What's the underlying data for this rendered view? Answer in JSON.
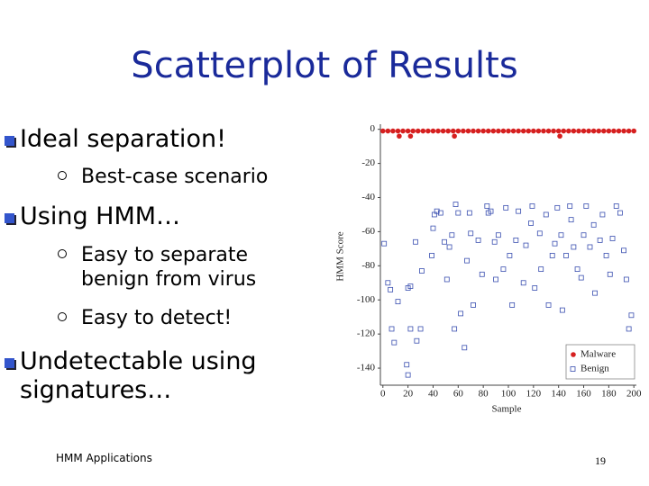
{
  "slide": {
    "title": "Scatterplot of Results",
    "bullets": [
      {
        "text": "Ideal separation!",
        "sub": [
          "Best-case scenario"
        ]
      },
      {
        "text": "Using HMM…",
        "sub": [
          "Easy to separate benign from virus",
          "Easy to detect!"
        ]
      },
      {
        "text": "Undetectable using signatures…"
      }
    ],
    "footer": "HMM Applications",
    "page_number": "19"
  },
  "chart_data": {
    "type": "scatter",
    "xlabel": "Sample",
    "ylabel": "HMM Score",
    "xlim": [
      -2,
      202
    ],
    "ylim": [
      3,
      -150
    ],
    "xticks": [
      0,
      20,
      40,
      60,
      80,
      100,
      120,
      140,
      160,
      180,
      200
    ],
    "yticks": [
      0,
      -20,
      -40,
      -60,
      -80,
      -100,
      -120,
      -140
    ],
    "legend": "lower right",
    "series": [
      {
        "name": "Malware",
        "color": "#d62020",
        "marker": "circle",
        "x": [
          0,
          4,
          8,
          12,
          16,
          20,
          24,
          28,
          32,
          36,
          40,
          44,
          48,
          52,
          56,
          60,
          64,
          68,
          72,
          76,
          80,
          84,
          88,
          92,
          96,
          100,
          104,
          108,
          112,
          116,
          120,
          124,
          128,
          132,
          136,
          140,
          144,
          148,
          152,
          156,
          160,
          164,
          168,
          172,
          176,
          180,
          184,
          188,
          192,
          196,
          200,
          13,
          22,
          57,
          141
        ],
        "values": [
          -1,
          -1,
          -1,
          -1,
          -1,
          -1,
          -1,
          -1,
          -1,
          -1,
          -1,
          -1,
          -1,
          -1,
          -1,
          -1,
          -1,
          -1,
          -1,
          -1,
          -1,
          -1,
          -1,
          -1,
          -1,
          -1,
          -1,
          -1,
          -1,
          -1,
          -1,
          -1,
          -1,
          -1,
          -1,
          -1,
          -1,
          -1,
          -1,
          -1,
          -1,
          -1,
          -1,
          -1,
          -1,
          -1,
          -1,
          -1,
          -1,
          -1,
          -1,
          -4,
          -4,
          -4,
          -4
        ]
      },
      {
        "name": "Benign",
        "color": "#3a4fb0",
        "marker": "square",
        "x": [
          1,
          4,
          6,
          7,
          9,
          12,
          20,
          19,
          20,
          22,
          22,
          26,
          27,
          30,
          31,
          39,
          40,
          41,
          43,
          46,
          49,
          51,
          53,
          55,
          57,
          58,
          60,
          62,
          65,
          67,
          69,
          70,
          72,
          76,
          79,
          83,
          84,
          86,
          89,
          90,
          92,
          96,
          98,
          101,
          103,
          106,
          108,
          112,
          114,
          118,
          119,
          121,
          125,
          126,
          130,
          132,
          135,
          137,
          139,
          142,
          143,
          146,
          149,
          150,
          152,
          155,
          158,
          160,
          162,
          165,
          168,
          169,
          173,
          175,
          178,
          181,
          183,
          186,
          189,
          192,
          194,
          196,
          198
        ],
        "values": [
          -67,
          -90,
          -94,
          -117,
          -125,
          -101,
          -93,
          -138,
          -144,
          -92,
          -117,
          -66,
          -124,
          -117,
          -83,
          -74,
          -58,
          -50,
          -48,
          -49,
          -66,
          -88,
          -69,
          -62,
          -117,
          -44,
          -49,
          -108,
          -128,
          -77,
          -49,
          -61,
          -103,
          -65,
          -85,
          -45,
          -49,
          -48,
          -66,
          -88,
          -62,
          -82,
          -46,
          -74,
          -103,
          -65,
          -48,
          -90,
          -68,
          -55,
          -45,
          -93,
          -61,
          -82,
          -50,
          -103,
          -74,
          -67,
          -46,
          -62,
          -106,
          -74,
          -45,
          -53,
          -69,
          -82,
          -87,
          -62,
          -45,
          -69,
          -56,
          -96,
          -65,
          -50,
          -74,
          -85,
          -64,
          -45,
          -49,
          -71,
          -88,
          -117,
          -109
        ]
      }
    ]
  }
}
